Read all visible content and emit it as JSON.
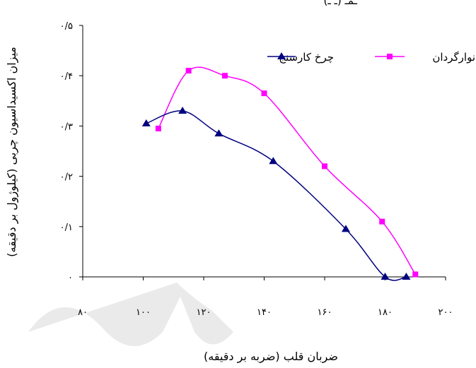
{
  "chart_data": {
    "type": "line",
    "top_text": "ـمـ (ـ ـ)",
    "xlabel": "ضربان قلب (ضربه بر دقیقه)",
    "ylabel": "میزان اکسیداسیون چربی (کیلوژول بر دقیقه)",
    "xlim": [
      80,
      200
    ],
    "ylim": [
      0,
      0.5
    ],
    "x_ticks": [
      {
        "value": 80,
        "label": "۸۰"
      },
      {
        "value": 100,
        "label": "۱۰۰"
      },
      {
        "value": 120,
        "label": "۱۲۰"
      },
      {
        "value": 140,
        "label": "۱۴۰"
      },
      {
        "value": 160,
        "label": "۱۶۰"
      },
      {
        "value": 180,
        "label": "۱۸۰"
      },
      {
        "value": 200,
        "label": "۲۰۰"
      }
    ],
    "y_ticks": [
      {
        "value": 0,
        "label": "۰"
      },
      {
        "value": 0.1,
        "label": "۰/۱"
      },
      {
        "value": 0.2,
        "label": "۰/۲"
      },
      {
        "value": 0.3,
        "label": "۰/۳"
      },
      {
        "value": 0.4,
        "label": "۰/۴"
      },
      {
        "value": 0.5,
        "label": "۰/۵"
      }
    ],
    "grid": false,
    "legend_position": "top-right",
    "series": [
      {
        "name": "نوارگردان",
        "color": "#ff00ff",
        "marker": "square",
        "points": [
          [
            105,
            0.295
          ],
          [
            115,
            0.41
          ],
          [
            127,
            0.4
          ],
          [
            140,
            0.365
          ],
          [
            160,
            0.22
          ],
          [
            179,
            0.11
          ],
          [
            190,
            0.005
          ]
        ]
      },
      {
        "name": "چرخ کارسنج",
        "color": "#000080",
        "marker": "triangle",
        "points": [
          [
            101,
            0.305
          ],
          [
            113,
            0.33
          ],
          [
            125,
            0.285
          ],
          [
            143,
            0.23
          ],
          [
            167,
            0.095
          ],
          [
            180,
            0.0
          ],
          [
            187,
            0.0
          ]
        ]
      }
    ]
  }
}
